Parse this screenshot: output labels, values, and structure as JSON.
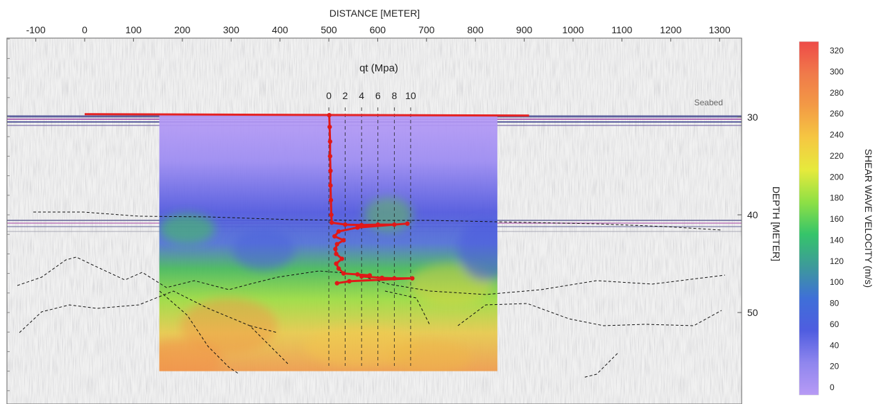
{
  "chart_data": {
    "type": "heatmap",
    "title": "",
    "x_axis": {
      "label": "DISTANCE [METER]",
      "ticks": [
        -100,
        0,
        100,
        200,
        300,
        400,
        500,
        600,
        700,
        800,
        900,
        1000,
        1100,
        1200,
        1300
      ],
      "range": [
        -160,
        1310
      ]
    },
    "y_axis": {
      "label": "DEPTH [METER]",
      "ticks": [
        30,
        40,
        50
      ],
      "range": [
        21.5,
        58
      ]
    },
    "colorbar": {
      "label": "SHEAR WAVE VELOCITY (m/s)",
      "ticks": [
        0,
        20,
        40,
        60,
        80,
        100,
        120,
        140,
        160,
        180,
        200,
        220,
        240,
        260,
        280,
        300,
        320
      ],
      "range": [
        0,
        320
      ],
      "colors": [
        "#b79af5",
        "#8f86ee",
        "#4f5de0",
        "#3f6fd8",
        "#3d9a9a",
        "#35c46a",
        "#8ee045",
        "#e6ea3c",
        "#f5c742",
        "#f39a45",
        "#f07a4a",
        "#ee4a48"
      ]
    },
    "velocity_section": {
      "x_range": [
        150,
        845
      ],
      "depth_range": [
        29.8,
        56
      ]
    },
    "seabed": {
      "label": "Seabed",
      "x": [
        0,
        910
      ],
      "depth": 29.7,
      "color": "#e52222"
    },
    "cpt": {
      "title": "qt (Mpa)",
      "scale_ticks": [
        0,
        2,
        4,
        6,
        8,
        10
      ],
      "x_at_zero": 500,
      "meters_per_mpa": 16.75,
      "color": "#e01818",
      "profile": [
        {
          "d": 29.8,
          "qt": 0.05
        },
        {
          "d": 31.0,
          "qt": 0.1
        },
        {
          "d": 32.5,
          "qt": 0.15
        },
        {
          "d": 34.0,
          "qt": 0.15
        },
        {
          "d": 35.5,
          "qt": 0.2
        },
        {
          "d": 37.0,
          "qt": 0.2
        },
        {
          "d": 38.5,
          "qt": 0.25
        },
        {
          "d": 40.0,
          "qt": 0.3
        },
        {
          "d": 40.8,
          "qt": 0.35
        },
        {
          "d": 41.0,
          "qt": 2.0
        },
        {
          "d": 41.05,
          "qt": 4.0
        },
        {
          "d": 41.0,
          "qt": 6.0
        },
        {
          "d": 41.0,
          "qt": 8.0
        },
        {
          "d": 40.9,
          "qt": 9.6
        },
        {
          "d": 41.3,
          "qt": 3.5
        },
        {
          "d": 41.7,
          "qt": 1.2
        },
        {
          "d": 42.2,
          "qt": 0.7
        },
        {
          "d": 42.6,
          "qt": 1.8
        },
        {
          "d": 43.0,
          "qt": 1.0
        },
        {
          "d": 43.5,
          "qt": 0.8
        },
        {
          "d": 44.0,
          "qt": 0.9
        },
        {
          "d": 44.5,
          "qt": 1.6
        },
        {
          "d": 45.0,
          "qt": 0.9
        },
        {
          "d": 45.5,
          "qt": 1.2
        },
        {
          "d": 46.0,
          "qt": 1.8
        },
        {
          "d": 46.1,
          "qt": 3.5
        },
        {
          "d": 46.2,
          "qt": 5.0
        },
        {
          "d": 46.3,
          "qt": 4.0
        },
        {
          "d": 46.45,
          "qt": 6.5
        },
        {
          "d": 46.5,
          "qt": 8.0
        },
        {
          "d": 46.5,
          "qt": 10.2
        },
        {
          "d": 46.8,
          "qt": 2.5
        },
        {
          "d": 47.0,
          "qt": 1.0
        }
      ]
    },
    "horizons_note": "black dashed interpreted reflectors"
  }
}
